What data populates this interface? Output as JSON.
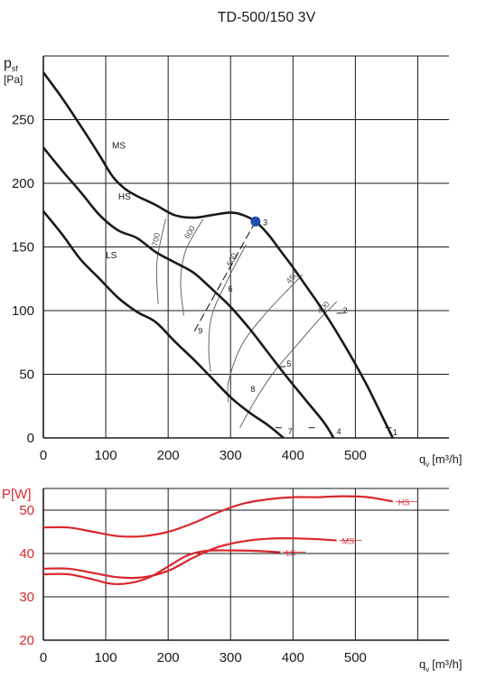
{
  "title": "TD-500/150 3V",
  "colors": {
    "pressure": "#1a1a1a",
    "power": "#d8282d",
    "iso": "#666666",
    "grid": "#1a1a1a",
    "point": "#1f4fa8"
  },
  "chart_data": [
    {
      "type": "line",
      "title": "TD-500/150 3V",
      "ylabel_main": "p",
      "ylabel_sub": "sf",
      "ylabel_unit": "[Pa]",
      "xlabel_main": "q",
      "xlabel_sub": "v",
      "xlabel_unit": "[m³/h]",
      "xlim": [
        0,
        650
      ],
      "ylim": [
        0,
        300
      ],
      "xticks": [
        0,
        100,
        200,
        300,
        400,
        500
      ],
      "yticks": [
        0,
        50,
        100,
        150,
        200,
        250
      ],
      "grid": true,
      "series": [
        {
          "name": "HS",
          "x": [
            0,
            30,
            60,
            90,
            110,
            130,
            150,
            180,
            210,
            240,
            270,
            300,
            320,
            340,
            360,
            380,
            400,
            420,
            440,
            460,
            480,
            500,
            520,
            540,
            560
          ],
          "y": [
            287,
            267,
            245,
            222,
            206,
            196,
            190,
            183,
            175,
            173,
            175,
            177,
            175,
            170,
            160,
            147,
            134,
            120,
            106,
            91,
            75,
            58,
            40,
            20,
            0
          ]
        },
        {
          "name": "MS",
          "x": [
            0,
            30,
            60,
            90,
            120,
            150,
            180,
            210,
            240,
            270,
            300,
            330,
            360,
            390,
            420,
            450,
            465
          ],
          "y": [
            228,
            210,
            193,
            175,
            163,
            157,
            146,
            138,
            130,
            117,
            103,
            86,
            67,
            48,
            30,
            12,
            0
          ]
        },
        {
          "name": "LS",
          "x": [
            0,
            30,
            60,
            90,
            120,
            150,
            180,
            210,
            240,
            270,
            300,
            330,
            360,
            385
          ],
          "y": [
            178,
            160,
            140,
            125,
            110,
            99,
            91,
            76,
            62,
            47,
            32,
            20,
            10,
            0
          ]
        }
      ],
      "iso_labels": [
        "700",
        "600",
        "500",
        "450",
        "400"
      ],
      "iso_lines": [
        {
          "label": "700",
          "x": [
            196,
            182,
            184
          ],
          "y": [
            172,
            138,
            105
          ]
        },
        {
          "label": "600",
          "x": [
            256,
            228,
            220,
            225
          ],
          "y": [
            172,
            147,
            123,
            96
          ]
        },
        {
          "label": "500",
          "x": [
            325,
            295,
            270,
            265,
            268
          ],
          "y": [
            152,
            124,
            96,
            70,
            52
          ]
        },
        {
          "label": "450",
          "x": [
            415,
            395,
            355,
            318,
            297,
            296
          ],
          "y": [
            128,
            118,
            97,
            73,
            45,
            28
          ]
        },
        {
          "label": "400",
          "x": [
            470,
            440,
            410,
            370,
            340,
            315
          ],
          "y": [
            107,
            92,
            75,
            52,
            30,
            8
          ]
        }
      ],
      "point_labels": [
        "1",
        "2",
        "3",
        "4",
        "5",
        "6",
        "7",
        "8",
        "9"
      ],
      "operating_point": {
        "label": "3",
        "x": 340,
        "y": 170
      }
    },
    {
      "type": "line",
      "ylabel": "P[W]",
      "xlabel_main": "q",
      "xlabel_sub": "v",
      "xlabel_unit": "[m³/h]",
      "xlim": [
        0,
        650
      ],
      "ylim": [
        20,
        55
      ],
      "xticks": [
        0,
        100,
        200,
        300,
        400,
        500
      ],
      "yticks": [
        20,
        30,
        40,
        50
      ],
      "grid": true,
      "series": [
        {
          "name": "HS",
          "x": [
            0,
            40,
            80,
            120,
            160,
            200,
            240,
            280,
            320,
            360,
            400,
            440,
            480,
            520,
            560
          ],
          "y": [
            46,
            46,
            45,
            44,
            44,
            45,
            47,
            49.5,
            51.5,
            52.5,
            53,
            53,
            53.2,
            53,
            52
          ]
        },
        {
          "name": "MS",
          "x": [
            0,
            40,
            80,
            120,
            160,
            200,
            240,
            280,
            320,
            360,
            400,
            440,
            470
          ],
          "y": [
            36.5,
            36.5,
            35.5,
            34.5,
            34.5,
            36,
            39,
            41.5,
            42.8,
            43.4,
            43.5,
            43.3,
            43
          ]
        },
        {
          "name": "LS",
          "x": [
            0,
            40,
            80,
            110,
            140,
            170,
            200,
            230,
            260,
            300,
            340,
            380
          ],
          "y": [
            35.2,
            35.2,
            34,
            33,
            33.2,
            34.5,
            37,
            39.5,
            40.6,
            40.7,
            40.6,
            40.3
          ]
        }
      ]
    }
  ]
}
